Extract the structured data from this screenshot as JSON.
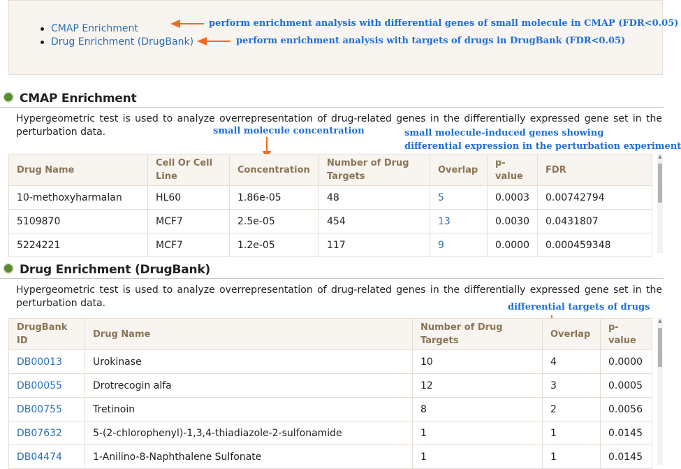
{
  "toc": {
    "items": [
      {
        "label": "CMAP Enrichment",
        "note": "perform enrichment analysis with differential genes of small molecule in CMAP (FDR<0.05)"
      },
      {
        "label": "Drug Enrichment (DrugBank)",
        "note": "perform enrichment analysis with targets of drugs in DrugBank (FDR<0.05)"
      }
    ]
  },
  "cmap": {
    "title": "CMAP Enrichment",
    "description": "Hypergeometric test is used to analyze overrepresentation of drug-related genes in the differentially expressed gene set in the perturbation data.",
    "notes": {
      "concentration": "small molecule concentration",
      "overlap_line1": "small molecule-induced genes showing",
      "overlap_line2": "differential expression in the perturbation experiment"
    },
    "headers": [
      "Drug Name",
      "Cell Or Cell Line",
      "Concentration",
      "Number of Drug Targets",
      "Overlap",
      "p-value",
      "FDR"
    ],
    "rows": [
      [
        "10-methoxyharmalan",
        "HL60",
        "1.86e-05",
        "48",
        "5",
        "0.0003",
        "0.00742794"
      ],
      [
        "5109870",
        "MCF7",
        "2.5e-05",
        "454",
        "13",
        "0.0030",
        "0.0431807"
      ],
      [
        "5224221",
        "MCF7",
        "1.2e-05",
        "117",
        "9",
        "0.0000",
        "0.000459348"
      ]
    ]
  },
  "drugbank": {
    "title": "Drug Enrichment (DrugBank)",
    "description": "Hypergeometric test is used to analyze overrepresentation of drug-related genes in the differentially expressed gene set in the perturbation data.",
    "notes": {
      "overlap": "differential targets of drugs"
    },
    "headers": [
      "DrugBank ID",
      "Drug Name",
      "Number of Drug Targets",
      "Overlap",
      "p-value"
    ],
    "rows": [
      [
        "DB00013",
        "Urokinase",
        "10",
        "4",
        "0.0000"
      ],
      [
        "DB00055",
        "Drotrecogin alfa",
        "12",
        "3",
        "0.0005"
      ],
      [
        "DB00755",
        "Tretinoin",
        "8",
        "2",
        "0.0056"
      ],
      [
        "DB07632",
        "5-(2-chlorophenyl)-1,3,4-thiadiazole-2-sulfonamide",
        "1",
        "1",
        "0.0145"
      ],
      [
        "DB04474",
        "1-Anilino-8-Naphthalene Sulfonate",
        "1",
        "1",
        "0.0145"
      ]
    ]
  },
  "colors": {
    "link": "#2a6fb3",
    "note": "#1d6fd6",
    "arrow": "#f26b1d",
    "header_text": "#8a7556",
    "bullet": "#5a8a2f"
  }
}
